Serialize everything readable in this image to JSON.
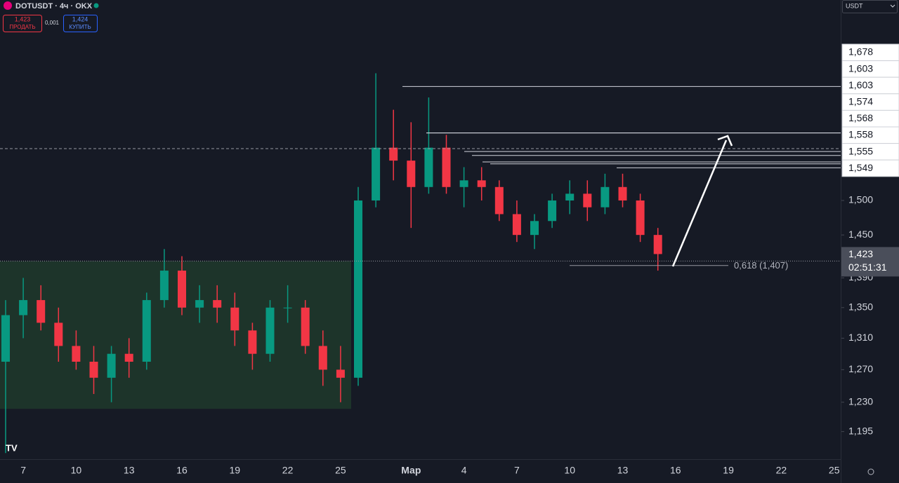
{
  "toolbar": {
    "symbol": "DOTUSDT · 4ч · OKX",
    "sell_price": "1,423",
    "sell_label": "ПРОДАТЬ",
    "spread": "0,001",
    "buy_price": "1,424",
    "buy_label": "КУПИТЬ",
    "currency": "USDT"
  },
  "chart_data": {
    "type": "candlestick",
    "log_scale": true,
    "grid": false,
    "categories": [
      null,
      "7",
      null,
      null,
      "10",
      null,
      null,
      "13",
      null,
      null,
      "16",
      null,
      null,
      "19",
      null,
      null,
      "22",
      null,
      null,
      "25",
      null,
      null,
      null,
      "Мар",
      null,
      null,
      "4",
      null,
      null,
      "7",
      null,
      null,
      "10",
      null,
      null,
      "13",
      null,
      null,
      "16",
      null,
      null,
      "19",
      null,
      null,
      "22",
      null,
      null,
      "25"
    ],
    "up_color": "#089981",
    "down_color": "#f23645",
    "open": [
      1.28,
      1.34,
      1.36,
      1.33,
      1.3,
      1.28,
      1.26,
      1.29,
      1.28,
      1.36,
      1.4,
      1.35,
      1.36,
      1.35,
      1.32,
      1.29,
      1.35,
      1.35,
      1.3,
      1.27,
      1.26,
      1.5,
      1.58,
      1.56,
      1.52,
      1.58,
      1.52,
      1.53,
      1.52,
      1.48,
      1.45,
      1.47,
      1.5,
      1.51,
      1.49,
      1.52,
      1.5,
      1.45,
      null,
      null,
      null,
      null,
      null,
      null,
      null,
      null,
      null,
      null
    ],
    "high": [
      1.36,
      1.39,
      1.38,
      1.35,
      1.32,
      1.3,
      1.3,
      1.31,
      1.37,
      1.43,
      1.42,
      1.38,
      1.38,
      1.37,
      1.33,
      1.36,
      1.38,
      1.36,
      1.32,
      1.3,
      1.52,
      1.7,
      1.64,
      1.62,
      1.66,
      1.6,
      1.55,
      1.55,
      1.53,
      1.5,
      1.48,
      1.51,
      1.53,
      1.53,
      1.54,
      1.54,
      1.51,
      1.46,
      null,
      null,
      null,
      null,
      null,
      null,
      null,
      null,
      null,
      null
    ],
    "low": [
      1.17,
      1.31,
      1.32,
      1.28,
      1.27,
      1.24,
      1.23,
      1.26,
      1.27,
      1.35,
      1.34,
      1.33,
      1.33,
      1.3,
      1.27,
      1.28,
      1.33,
      1.29,
      1.25,
      1.23,
      1.25,
      1.49,
      1.53,
      1.46,
      1.51,
      1.51,
      1.49,
      1.5,
      1.47,
      1.44,
      1.43,
      1.46,
      1.48,
      1.47,
      1.48,
      1.49,
      1.44,
      1.4,
      null,
      null,
      null,
      null,
      null,
      null,
      null,
      null,
      null,
      null
    ],
    "close": [
      1.34,
      1.36,
      1.33,
      1.3,
      1.28,
      1.26,
      1.29,
      1.28,
      1.36,
      1.4,
      1.35,
      1.36,
      1.35,
      1.32,
      1.29,
      1.35,
      1.35,
      1.3,
      1.27,
      1.26,
      1.5,
      1.58,
      1.56,
      1.52,
      1.58,
      1.52,
      1.53,
      1.52,
      1.48,
      1.45,
      1.47,
      1.5,
      1.51,
      1.49,
      1.52,
      1.5,
      1.45,
      1.423,
      null,
      null,
      null,
      null,
      null,
      null,
      null,
      null,
      null,
      null
    ],
    "ylim": [
      1.163,
      1.827
    ],
    "yticks": [
      {
        "value": 1.5,
        "label": "1,500"
      },
      {
        "value": 1.45,
        "label": "1,450"
      },
      {
        "value": 1.39,
        "label": "1,390"
      },
      {
        "value": 1.35,
        "label": "1,350"
      },
      {
        "value": 1.31,
        "label": "1,310"
      },
      {
        "value": 1.27,
        "label": "1,270"
      },
      {
        "value": 1.23,
        "label": "1,230"
      },
      {
        "value": 1.195,
        "label": "1,195"
      }
    ],
    "levels": {
      "values": [
        1.678,
        1.603,
        1.603,
        1.574,
        1.568,
        1.558,
        1.555,
        1.549
      ],
      "value_labels": [
        "1,678",
        "1,603",
        "1,603",
        "1,574",
        "1,568",
        "1,558",
        "1,555",
        "1,549"
      ]
    },
    "zone": {
      "low": 1.222,
      "high": 1.413,
      "color": "#1e3a2c"
    },
    "fib": {
      "value": 1.407,
      "label": "0,618 (1,407)"
    },
    "current": {
      "value": 1.423,
      "label": "1,423",
      "countdown": "02:51:31"
    }
  }
}
